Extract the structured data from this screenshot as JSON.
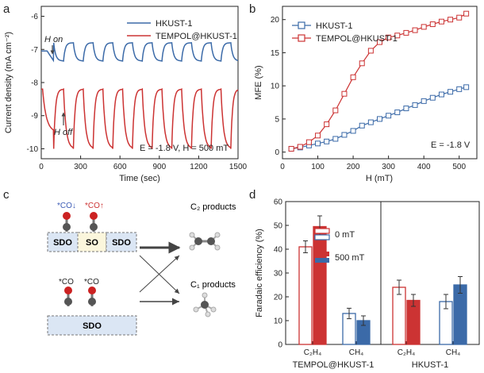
{
  "panels": {
    "a": "a",
    "b": "b",
    "c": "c",
    "d": "d"
  },
  "chart_data": [
    {
      "id": "a",
      "type": "line",
      "xlabel": "Time (sec)",
      "ylabel": "Current density (mA cm⁻²)",
      "xlim": [
        0,
        1500
      ],
      "ylim": [
        -10.3,
        -5.7
      ],
      "xticks": [
        "0",
        "300",
        "600",
        "900",
        "1200",
        "1500"
      ],
      "yticks": [
        "-6",
        "-7",
        "-8",
        "-9",
        "-10"
      ],
      "legend": [
        "HKUST-1",
        "TEMPOL@HKUST-1"
      ],
      "series": [
        {
          "name": "HKUST-1",
          "color": "#3b6aa8",
          "period_sec": 150,
          "on_sec": 75,
          "start_sec": 95,
          "first_on_start": 45,
          "high": -6.8,
          "low": -7.35,
          "baseline": -7.05
        },
        {
          "name": "TEMPOL@HKUST-1",
          "color": "#cc3333",
          "period_sec": 150,
          "on_sec": 75,
          "start_sec": 95,
          "high": -8.2,
          "low": -10.0,
          "baseline": -8.2
        }
      ],
      "annotations": {
        "h_on": "H on",
        "h_off": "H off",
        "conditions": "E = -1.8 V, H = 500 mT"
      }
    },
    {
      "id": "b",
      "type": "line",
      "xlabel": "H (mT)",
      "ylabel": "MFE (%)",
      "xlim": [
        0,
        550
      ],
      "ylim": [
        -1,
        22
      ],
      "xticks": [
        "0",
        "100",
        "200",
        "300",
        "400",
        "500"
      ],
      "yticks": [
        "0",
        "5",
        "10",
        "15",
        "20"
      ],
      "legend": [
        "HKUST-1",
        "TEMPOL@HKUST-1"
      ],
      "annotation": "E = -1.8 V",
      "x": [
        25,
        50,
        75,
        100,
        125,
        150,
        175,
        200,
        225,
        250,
        275,
        300,
        325,
        350,
        375,
        400,
        425,
        450,
        475,
        500,
        520
      ],
      "series": [
        {
          "name": "HKUST-1",
          "color": "#3b6aa8",
          "values": [
            0.5,
            0.7,
            1.0,
            1.3,
            1.6,
            2.0,
            2.6,
            3.2,
            4.0,
            4.5,
            5.0,
            5.5,
            6.0,
            6.6,
            7.1,
            7.7,
            8.2,
            8.7,
            9.1,
            9.5,
            9.8
          ]
        },
        {
          "name": "TEMPOL@HKUST-1",
          "color": "#cc3333",
          "values": [
            0.5,
            0.8,
            1.5,
            2.5,
            4.2,
            6.3,
            8.8,
            11.3,
            13.4,
            15.3,
            16.6,
            17.3,
            17.6,
            18.0,
            18.4,
            18.9,
            19.3,
            19.7,
            20.0,
            20.3,
            20.9
          ]
        }
      ]
    },
    {
      "id": "d",
      "type": "bar",
      "ylabel": "Faradaic efficiency (%)",
      "ylim": [
        0,
        60
      ],
      "yticks": [
        "0",
        "10",
        "20",
        "30",
        "40",
        "50",
        "60"
      ],
      "groups": [
        {
          "name": "TEMPOL@HKUST-1",
          "categories": [
            "C₂H₄",
            "CH₄"
          ],
          "bars": [
            {
              "category": "C₂H₄",
              "field": "0 mT",
              "value": 41,
              "err": 2.5,
              "color": "#cc3333",
              "filled": false
            },
            {
              "category": "C₂H₄",
              "field": "500 mT",
              "value": 49.5,
              "err": 4.5,
              "color": "#cc3333",
              "filled": true
            },
            {
              "category": "CH₄",
              "field": "0 mT",
              "value": 13,
              "err": 2.2,
              "color": "#3b6aa8",
              "filled": false
            },
            {
              "category": "CH₄",
              "field": "500 mT",
              "value": 10,
              "err": 2.0,
              "color": "#3b6aa8",
              "filled": true
            }
          ]
        },
        {
          "name": "HKUST-1",
          "categories": [
            "C₂H₄",
            "CH₄"
          ],
          "bars": [
            {
              "category": "C₂H₄",
              "field": "0 mT",
              "value": 24,
              "err": 3.0,
              "color": "#cc3333",
              "filled": false
            },
            {
              "category": "C₂H₄",
              "field": "500 mT",
              "value": 18.5,
              "err": 2.5,
              "color": "#cc3333",
              "filled": true
            },
            {
              "category": "CH₄",
              "field": "0 mT",
              "value": 18,
              "err": 3.0,
              "color": "#3b6aa8",
              "filled": false
            },
            {
              "category": "CH₄",
              "field": "500 mT",
              "value": 25,
              "err": 3.5,
              "color": "#3b6aa8",
              "filled": true
            }
          ]
        }
      ],
      "legend": [
        "0 mT",
        "500 mT"
      ]
    }
  ],
  "scheme": {
    "co_down": "*CO↓",
    "co_up": "*CO↑",
    "co_left": "*CO",
    "co_right": "*CO",
    "sdo": "SDO",
    "so": "SO",
    "c2_products": "C₂ products",
    "c1_products": "C₁ products"
  }
}
